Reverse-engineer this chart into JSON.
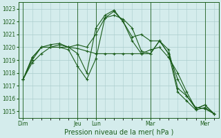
{
  "title": "",
  "xlabel": "Pression niveau de la mer( hPa )",
  "ylabel": "",
  "bg_color": "#d4ecec",
  "grid_color": "#aacccc",
  "line_color": "#1a5c1a",
  "ylim": [
    1014.5,
    1023.5
  ],
  "yticks": [
    1015,
    1016,
    1017,
    1018,
    1019,
    1020,
    1021,
    1022,
    1023
  ],
  "day_labels": [
    "Dim",
    "Jeu",
    "Lun",
    "Mar",
    "Mer"
  ],
  "day_positions": [
    0,
    48,
    64,
    112,
    160
  ],
  "xlim": [
    -4,
    172
  ],
  "series1_x": [
    0,
    8,
    16,
    24,
    32,
    40,
    48,
    56,
    64,
    72,
    80,
    88,
    96,
    104,
    112,
    120,
    128,
    136,
    144,
    152,
    160,
    168
  ],
  "series1_y": [
    1017.5,
    1018.8,
    1019.5,
    1020.0,
    1020.0,
    1020.0,
    1019.9,
    1019.7,
    1019.5,
    1019.5,
    1019.5,
    1019.5,
    1019.5,
    1019.5,
    1019.8,
    1020.0,
    1019.2,
    1018.0,
    1016.5,
    1015.2,
    1015.5,
    1014.8
  ],
  "series2_x": [
    0,
    8,
    16,
    24,
    32,
    40,
    48,
    56,
    64,
    72,
    80,
    88,
    96,
    104,
    112,
    120,
    128,
    136,
    144,
    152,
    160,
    168
  ],
  "series2_y": [
    1017.5,
    1019.0,
    1020.0,
    1020.0,
    1020.2,
    1020.0,
    1020.2,
    1020.0,
    1021.0,
    1022.3,
    1022.5,
    1022.2,
    1021.5,
    1019.7,
    1019.5,
    1020.5,
    1019.8,
    1016.8,
    1016.2,
    1015.3,
    1015.2,
    1014.8
  ],
  "series3_x": [
    0,
    8,
    16,
    24,
    32,
    40,
    48,
    56,
    64,
    72,
    80,
    88,
    96,
    104,
    112,
    120,
    128,
    136,
    144,
    152,
    160,
    168
  ],
  "series3_y": [
    1017.5,
    1019.2,
    1020.0,
    1020.0,
    1020.0,
    1019.8,
    1018.5,
    1017.5,
    1019.1,
    1022.3,
    1022.8,
    1022.0,
    1020.5,
    1019.5,
    1019.5,
    1020.5,
    1019.5,
    1017.5,
    1016.2,
    1015.2,
    1015.5,
    1014.8
  ],
  "series4_x": [
    0,
    8,
    16,
    24,
    32,
    40,
    48,
    56,
    64,
    72,
    80,
    88,
    96,
    104,
    112,
    120,
    128,
    136,
    144,
    152,
    160,
    168
  ],
  "series4_y": [
    1017.5,
    1019.2,
    1020.0,
    1020.2,
    1020.3,
    1020.0,
    1019.5,
    1018.0,
    1021.5,
    1022.5,
    1022.9,
    1022.0,
    1020.8,
    1021.0,
    1020.5,
    1020.5,
    1019.5,
    1016.5,
    1015.8,
    1015.1,
    1015.3,
    1014.8
  ],
  "marker_size": 3,
  "line_width": 0.8,
  "tick_fontsize": 5.5,
  "xlabel_fontsize": 7.0
}
